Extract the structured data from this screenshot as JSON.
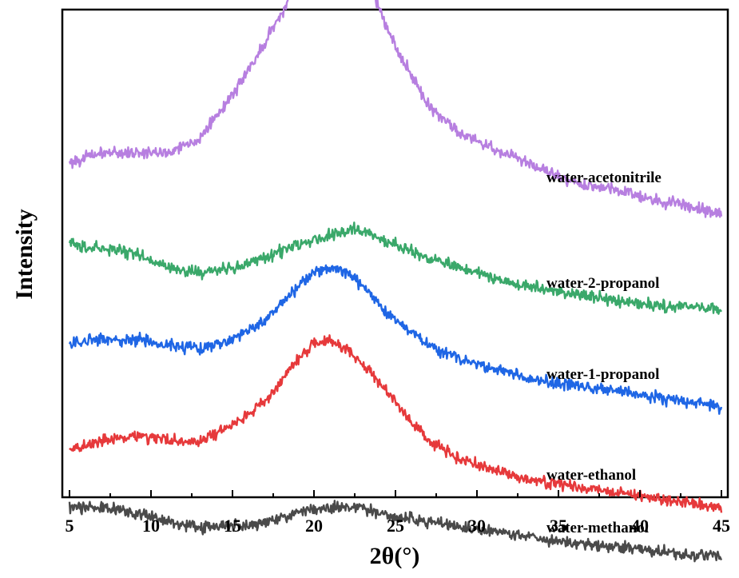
{
  "chart_data": {
    "type": "line",
    "title": "",
    "xlabel": "2θ(°)",
    "ylabel": "Intensity",
    "xlim": [
      5,
      45
    ],
    "x_ticks": [
      5,
      10,
      15,
      20,
      25,
      30,
      35,
      40,
      45
    ],
    "x_tick_labels": [
      "5",
      "10",
      "15",
      "20",
      "25",
      "30",
      "35",
      "40",
      "45"
    ],
    "y_ticks_shown": false,
    "grid": false,
    "legend": "none (inline series labels at right)",
    "series": [
      {
        "name": "water-acetonitrile",
        "color": "#b77fe0",
        "x": [
          5,
          7,
          9,
          11,
          13,
          15,
          17,
          19,
          20,
          21,
          22,
          23,
          25,
          27,
          29,
          31,
          33,
          35,
          37,
          39,
          41,
          43,
          45
        ],
        "y": [
          0.65,
          0.67,
          0.67,
          0.67,
          0.7,
          0.79,
          0.9,
          1.02,
          1.07,
          1.09,
          1.09,
          1.06,
          0.89,
          0.77,
          0.71,
          0.68,
          0.65,
          0.62,
          0.6,
          0.59,
          0.57,
          0.56,
          0.54
        ]
      },
      {
        "name": "water-2-propanol",
        "color": "#3aa86a",
        "x": [
          5,
          7,
          9,
          11,
          13,
          15,
          17,
          19,
          21,
          22.5,
          25,
          27,
          29,
          31,
          33,
          35,
          37,
          39,
          41,
          43,
          45
        ],
        "y": [
          0.48,
          0.47,
          0.46,
          0.43,
          0.42,
          0.43,
          0.45,
          0.48,
          0.5,
          0.51,
          0.48,
          0.45,
          0.43,
          0.41,
          0.39,
          0.38,
          0.37,
          0.36,
          0.35,
          0.35,
          0.34
        ]
      },
      {
        "name": "water-1-propanol",
        "color": "#1f66e5",
        "x": [
          5,
          7,
          9,
          11,
          13,
          15,
          17,
          19,
          20,
          21,
          22,
          23,
          25,
          27,
          29,
          31,
          33,
          35,
          37,
          39,
          41,
          43,
          45
        ],
        "y": [
          0.27,
          0.28,
          0.28,
          0.27,
          0.26,
          0.28,
          0.32,
          0.39,
          0.42,
          0.43,
          0.42,
          0.39,
          0.32,
          0.27,
          0.24,
          0.22,
          0.2,
          0.19,
          0.18,
          0.17,
          0.16,
          0.15,
          0.14
        ]
      },
      {
        "name": "water-ethanol",
        "color": "#e6393b",
        "x": [
          5,
          7,
          9,
          11,
          13,
          15,
          17,
          19,
          20,
          21,
          22,
          23,
          25,
          27,
          29,
          31,
          33,
          35,
          37,
          39,
          41,
          43,
          45
        ],
        "y": [
          0.05,
          0.07,
          0.08,
          0.07,
          0.07,
          0.1,
          0.15,
          0.24,
          0.27,
          0.28,
          0.26,
          0.23,
          0.15,
          0.07,
          0.03,
          0.01,
          -0.01,
          -0.02,
          -0.03,
          -0.04,
          -0.05,
          -0.06,
          -0.07
        ]
      },
      {
        "name": "water-methanol",
        "color": "#4a4a4a",
        "x": [
          5,
          7,
          9,
          11,
          13,
          15,
          17,
          19,
          21,
          22,
          23,
          25,
          27,
          29,
          31,
          33,
          35,
          37,
          39,
          41,
          43,
          45
        ],
        "y": [
          -0.07,
          -0.07,
          -0.08,
          -0.1,
          -0.11,
          -0.11,
          -0.1,
          -0.08,
          -0.07,
          -0.07,
          -0.07,
          -0.09,
          -0.1,
          -0.11,
          -0.12,
          -0.13,
          -0.14,
          -0.15,
          -0.15,
          -0.16,
          -0.17,
          -0.17
        ]
      }
    ]
  }
}
